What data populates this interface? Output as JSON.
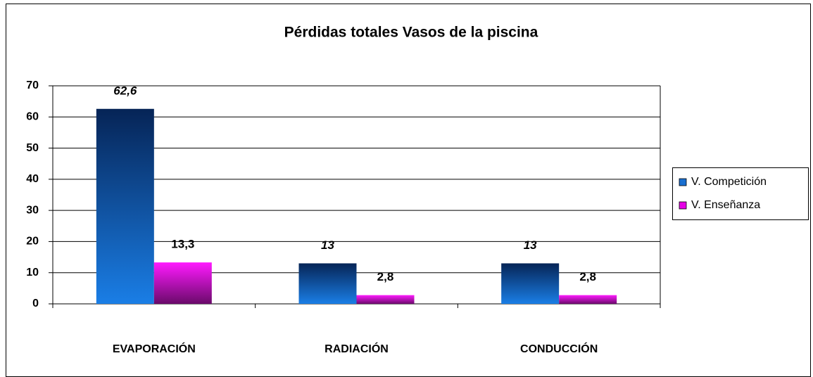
{
  "chart_data": {
    "type": "bar",
    "title": "Pérdidas totales Vasos de la piscina",
    "categories": [
      "EVAPORACIÓN",
      "RADIACIÓN",
      "CONDUCCIÓN"
    ],
    "series": [
      {
        "name": "V. Competición",
        "color": "#1a6fd0",
        "values": [
          62.6,
          13,
          13
        ],
        "value_labels": [
          "62,6",
          "13",
          "13"
        ]
      },
      {
        "name": "V. Enseñanza",
        "color": "#e600e6",
        "values": [
          13.3,
          2.8,
          2.8
        ],
        "value_labels": [
          "13,3",
          "2,8",
          "2,8"
        ]
      }
    ],
    "ylim": [
      0,
      70
    ],
    "yticks": [
      0,
      10,
      20,
      30,
      40,
      50,
      60,
      70
    ],
    "grid": true,
    "legend": "right"
  }
}
